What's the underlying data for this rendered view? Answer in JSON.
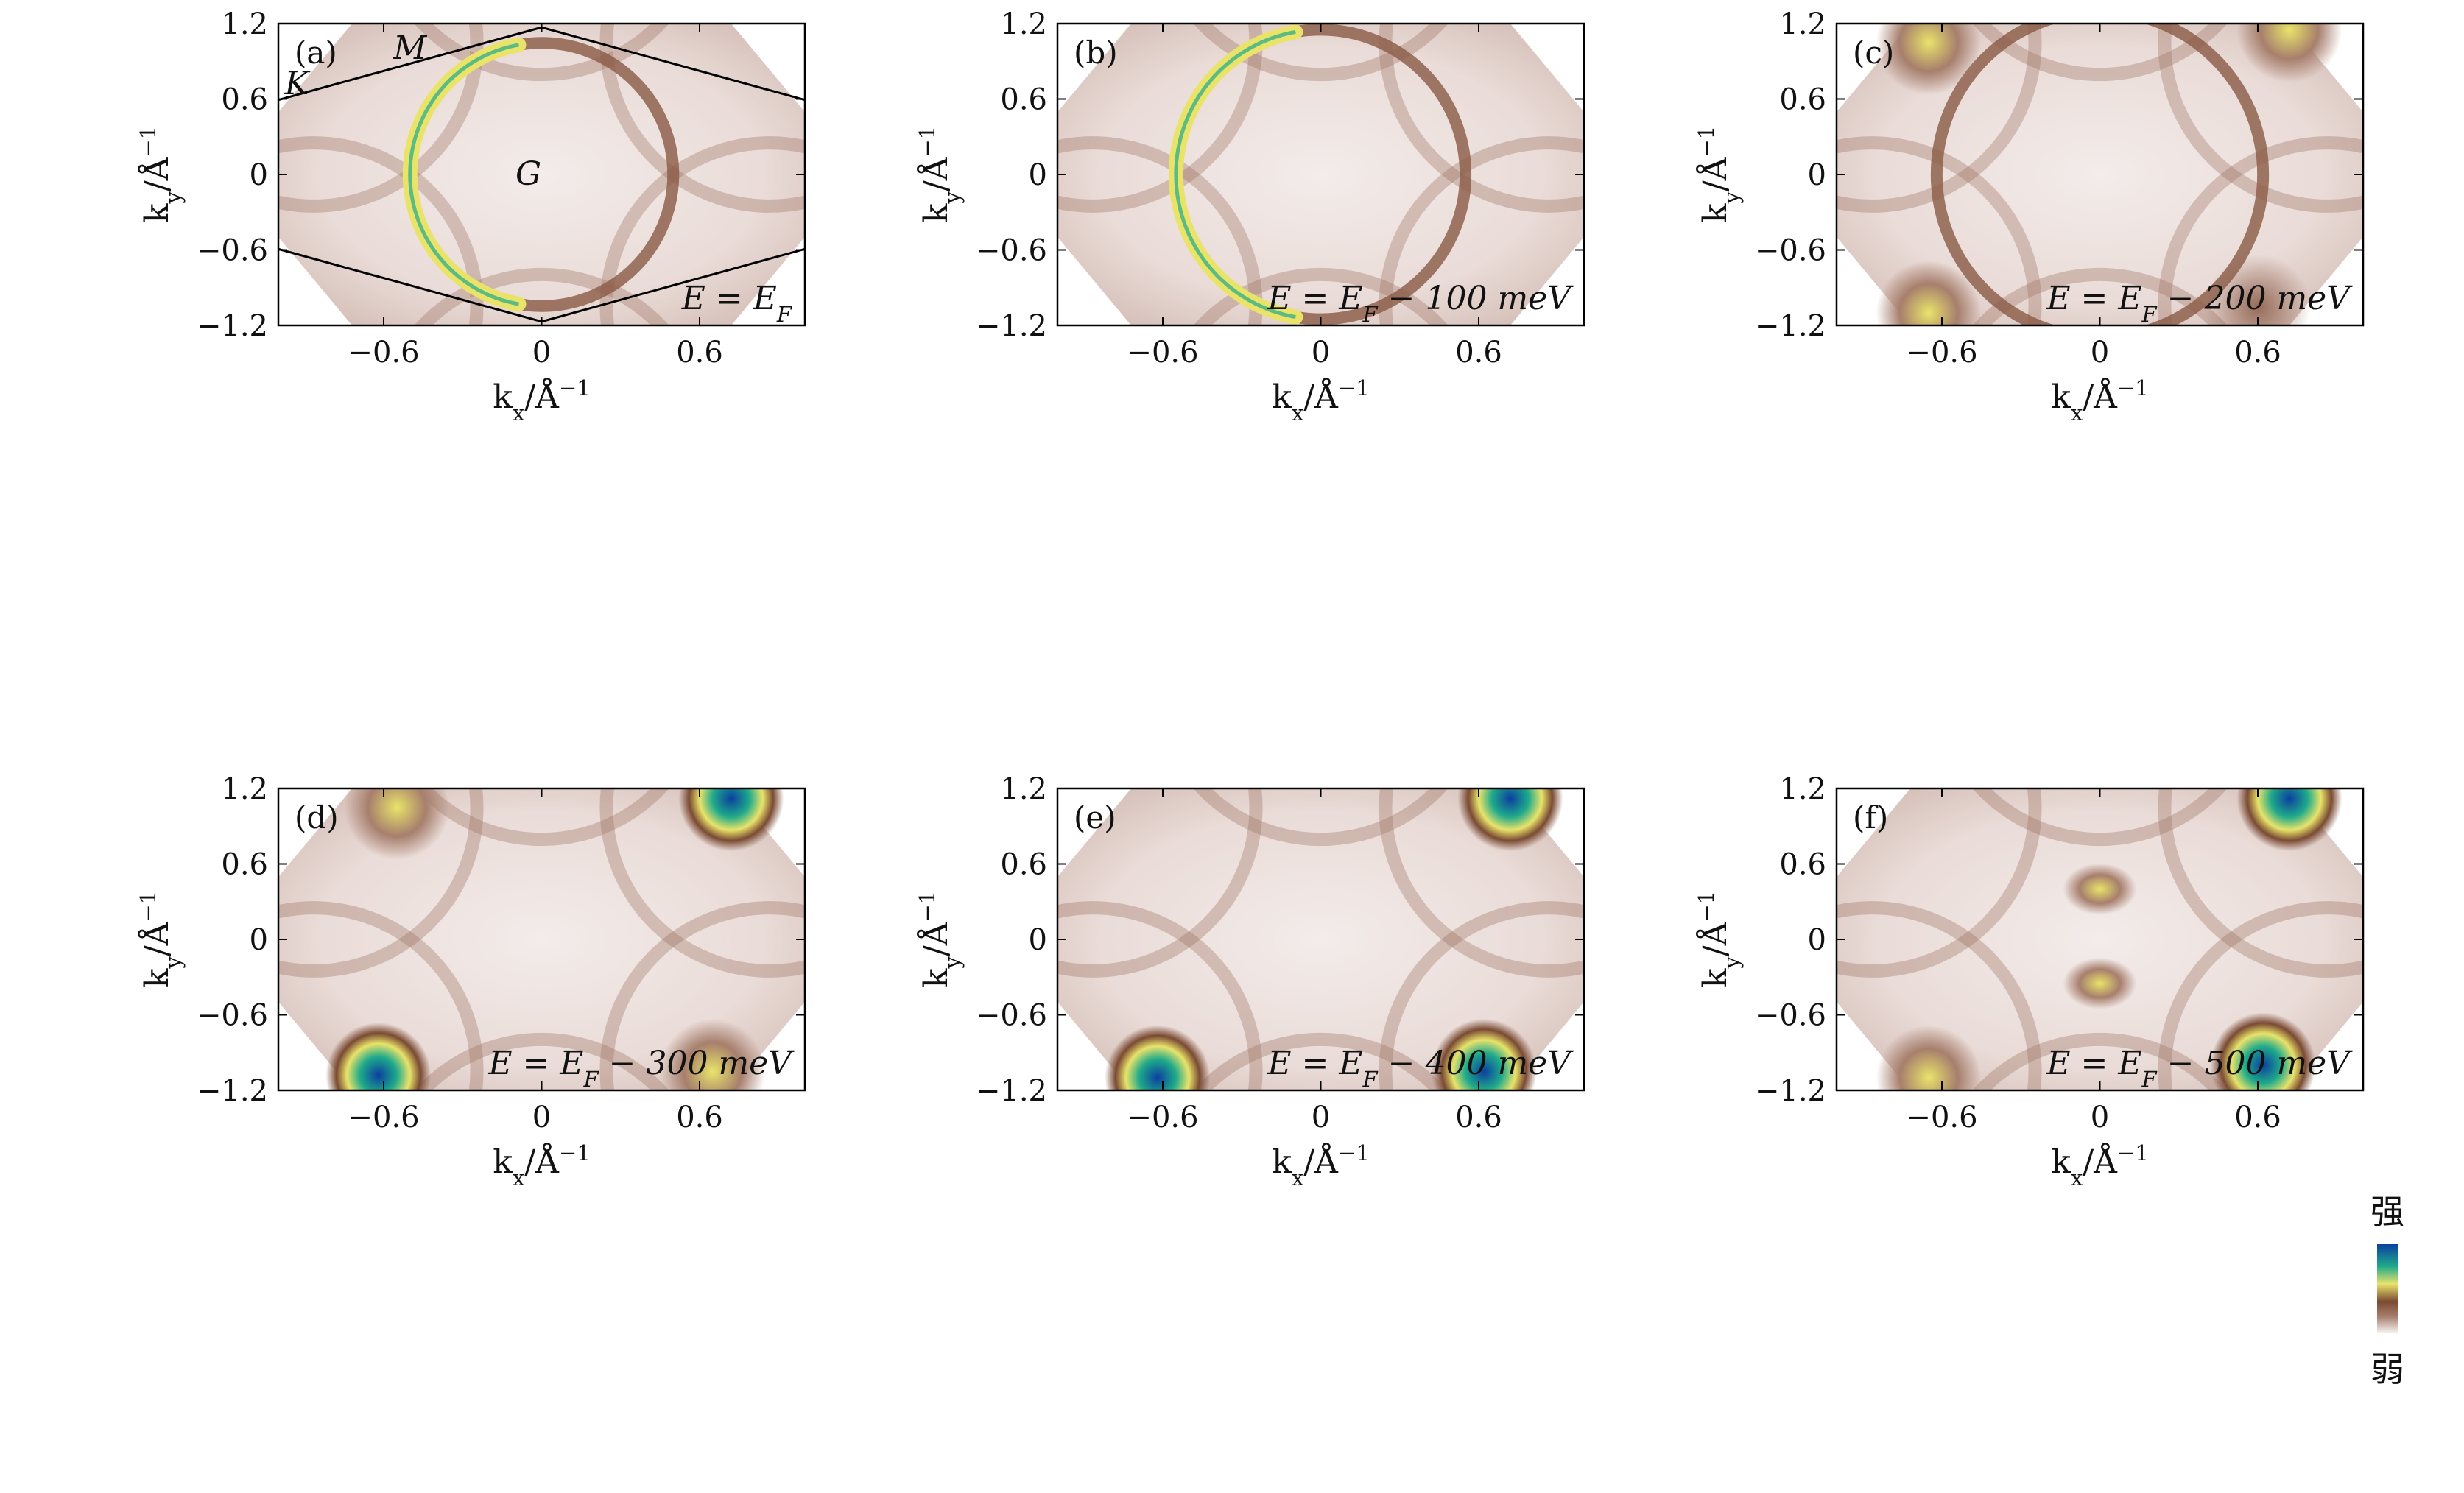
{
  "chart_data": [
    {
      "type": "heatmap",
      "panel_label": "(a)",
      "energy_label": "E = E_F",
      "energy_offset_meV": 0,
      "xlabel": "k_x/Å^-1",
      "ylabel": "k_y/Å^-1",
      "xlim": [
        -1.0,
        1.0
      ],
      "ylim": [
        -1.2,
        1.2
      ],
      "xticks": [
        "-0.6",
        "0",
        "0.6"
      ],
      "yticks": [
        "1.2",
        "0.6",
        "0",
        "-0.6",
        "-1.2"
      ],
      "brillouin_zone": true,
      "symmetry_points": [
        {
          "label": "G",
          "kx": -0.05,
          "ky": 0.0
        },
        {
          "label": "M",
          "kx": -0.5,
          "ky": 1.0
        },
        {
          "label": "K",
          "kx": -0.93,
          "ky": 0.72
        }
      ],
      "features": [
        {
          "kind": "pocket",
          "kx": 0.0,
          "ky": 0.0,
          "radius": 0.5,
          "intensity": "medium",
          "bright_side": "left"
        }
      ]
    },
    {
      "type": "heatmap",
      "panel_label": "(b)",
      "energy_label": "E = E_F − 100 meV",
      "energy_offset_meV": -100,
      "xlabel": "k_x/Å^-1",
      "ylabel": "k_y/Å^-1",
      "xlim": [
        -1.0,
        1.0
      ],
      "ylim": [
        -1.2,
        1.2
      ],
      "xticks": [
        "-0.6",
        "0",
        "0.6"
      ],
      "yticks": [
        "1.2",
        "0.6",
        "0",
        "-0.6",
        "-1.2"
      ],
      "features": [
        {
          "kind": "pocket",
          "kx": 0.0,
          "ky": 0.0,
          "radius": 0.55,
          "intensity": "medium",
          "bright_side": "left"
        }
      ]
    },
    {
      "type": "heatmap",
      "panel_label": "(c)",
      "energy_label": "E = E_F − 200 meV",
      "energy_offset_meV": -200,
      "xlabel": "k_x/Å^-1",
      "ylabel": "k_y/Å^-1",
      "xlim": [
        -1.0,
        1.0
      ],
      "ylim": [
        -1.2,
        1.2
      ],
      "xticks": [
        "-0.6",
        "0",
        "0.6"
      ],
      "yticks": [
        "1.2",
        "0.6",
        "0",
        "-0.6",
        "-1.2"
      ],
      "features": [
        {
          "kind": "pocket",
          "kx": 0.0,
          "ky": 0.0,
          "radius": 0.62,
          "intensity": "low"
        },
        {
          "kind": "corner",
          "kx": -0.65,
          "ky": 1.05,
          "intensity": "medium"
        },
        {
          "kind": "corner",
          "kx": 0.72,
          "ky": 1.15,
          "intensity": "medium"
        },
        {
          "kind": "corner",
          "kx": -0.65,
          "ky": -1.1,
          "intensity": "medium"
        },
        {
          "kind": "corner",
          "kx": 0.6,
          "ky": -1.05,
          "intensity": "low"
        }
      ]
    },
    {
      "type": "heatmap",
      "panel_label": "(d)",
      "energy_label": "E = E_F − 300 meV",
      "energy_offset_meV": -300,
      "xlabel": "k_x/Å^-1",
      "ylabel": "k_y/Å^-1",
      "xlim": [
        -1.0,
        1.0
      ],
      "ylim": [
        -1.2,
        1.2
      ],
      "xticks": [
        "-0.6",
        "0",
        "0.6"
      ],
      "yticks": [
        "1.2",
        "0.6",
        "0",
        "-0.6",
        "-1.2"
      ],
      "features": [
        {
          "kind": "corner",
          "kx": -0.55,
          "ky": 1.05,
          "intensity": "medium"
        },
        {
          "kind": "corner",
          "kx": 0.72,
          "ky": 1.12,
          "intensity": "high"
        },
        {
          "kind": "corner",
          "kx": -0.62,
          "ky": -1.08,
          "intensity": "high"
        },
        {
          "kind": "corner",
          "kx": 0.65,
          "ky": -1.05,
          "intensity": "medium"
        }
      ]
    },
    {
      "type": "heatmap",
      "panel_label": "(e)",
      "energy_label": "E = E_F − 400 meV",
      "energy_offset_meV": -400,
      "xlabel": "k_x/Å^-1",
      "ylabel": "k_y/Å^-1",
      "xlim": [
        -1.0,
        1.0
      ],
      "ylim": [
        -1.2,
        1.2
      ],
      "xticks": [
        "-0.6",
        "0",
        "0.6"
      ],
      "yticks": [
        "1.2",
        "0.6",
        "0",
        "-0.6",
        "-1.2"
      ],
      "features": [
        {
          "kind": "corner",
          "kx": 0.72,
          "ky": 1.12,
          "intensity": "high"
        },
        {
          "kind": "corner",
          "kx": -0.62,
          "ky": -1.1,
          "intensity": "high"
        },
        {
          "kind": "corner",
          "kx": 0.62,
          "ky": -1.05,
          "intensity": "high"
        }
      ]
    },
    {
      "type": "heatmap",
      "panel_label": "(f)",
      "energy_label": "E = E_F − 500 meV",
      "energy_offset_meV": -500,
      "xlabel": "k_x/Å^-1",
      "ylabel": "k_y/Å^-1",
      "xlim": [
        -1.0,
        1.0
      ],
      "ylim": [
        -1.2,
        1.2
      ],
      "xticks": [
        "-0.6",
        "0",
        "0.6"
      ],
      "yticks": [
        "1.2",
        "0.6",
        "0",
        "-0.6",
        "-1.2"
      ],
      "features": [
        {
          "kind": "spot",
          "kx": 0.0,
          "ky": 0.4,
          "intensity": "medium"
        },
        {
          "kind": "spot",
          "kx": 0.0,
          "ky": -0.35,
          "intensity": "medium"
        },
        {
          "kind": "corner",
          "kx": 0.72,
          "ky": 1.12,
          "intensity": "high"
        },
        {
          "kind": "corner",
          "kx": -0.65,
          "ky": -1.1,
          "intensity": "medium"
        },
        {
          "kind": "corner",
          "kx": 0.62,
          "ky": -1.0,
          "intensity": "high"
        }
      ]
    }
  ],
  "colorbar": {
    "high_label": "强",
    "low_label": "弱",
    "colors": [
      "#0b3fa0",
      "#1faa8a",
      "#e9e36a",
      "#7a4a33",
      "#a77f6d",
      "#f5f0ee"
    ]
  }
}
